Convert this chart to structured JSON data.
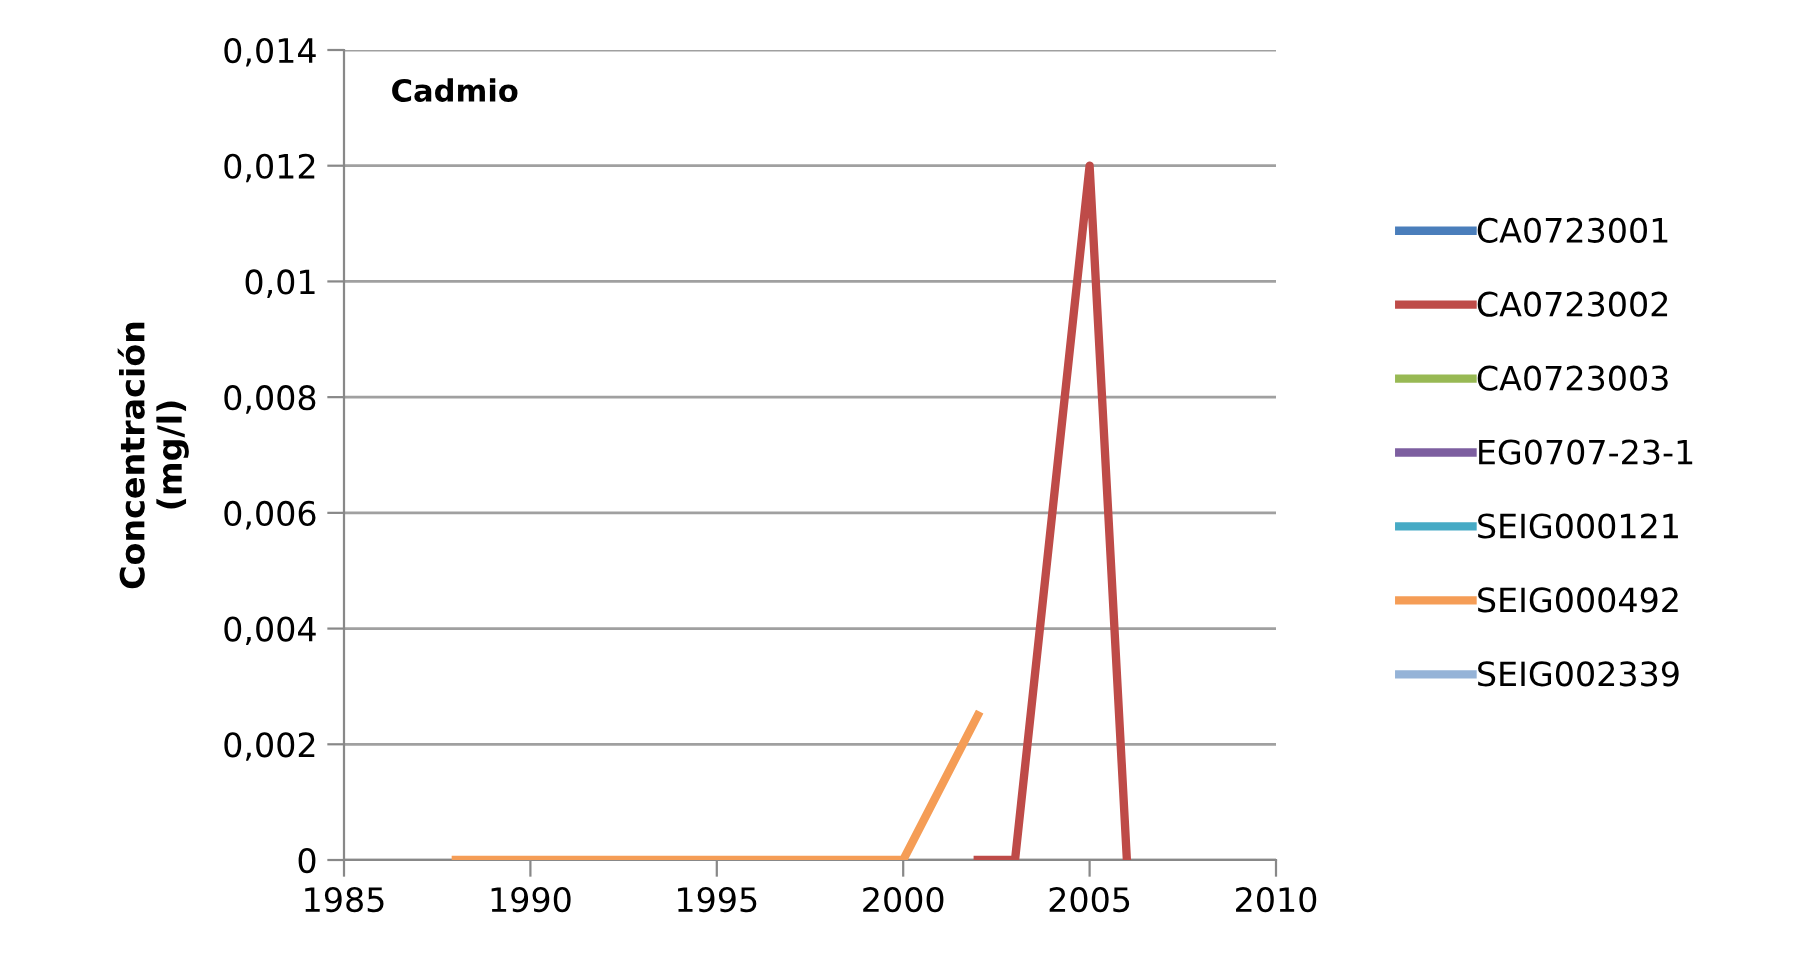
{
  "chart_data": {
    "type": "line",
    "title": "Cadmio",
    "ylabel": "Concentración\n(mg/l)",
    "xlim": [
      1985,
      2010
    ],
    "xticks": [
      1985,
      1990,
      1995,
      2000,
      2005,
      2010
    ],
    "ylim": [
      0,
      0.014
    ],
    "yticks": [
      {
        "value": 0,
        "label": "0"
      },
      {
        "value": 0.002,
        "label": "0,002"
      },
      {
        "value": 0.004,
        "label": "0,004"
      },
      {
        "value": 0.006,
        "label": "0,006"
      },
      {
        "value": 0.008,
        "label": "0,008"
      },
      {
        "value": 0.01,
        "label": "0,01"
      },
      {
        "value": 0.012,
        "label": "0,012"
      },
      {
        "value": 0.014,
        "label": "0,014"
      }
    ],
    "grid": "y",
    "legend": "right",
    "marker": "none",
    "line_style": "solid",
    "series": [
      {
        "name": "CA0723001",
        "color": "#4a7ebb"
      },
      {
        "name": "CA0723002",
        "color": "#be4b48",
        "x": [
          2002,
          2003,
          2005,
          2006
        ],
        "values": [
          0,
          0,
          0.012,
          0
        ]
      },
      {
        "name": "CA0723003",
        "color": "#98b954"
      },
      {
        "name": "EG0707-23-1",
        "color": "#7d5fa0"
      },
      {
        "name": "SEIG000121",
        "color": "#46aac5"
      },
      {
        "name": "SEIG000492",
        "color": "#f59d56",
        "x": [
          1988,
          2000,
          2002
        ],
        "values": [
          0,
          0,
          0.0025
        ]
      },
      {
        "name": "SEIG002339",
        "color": "#95b3d7"
      }
    ]
  }
}
